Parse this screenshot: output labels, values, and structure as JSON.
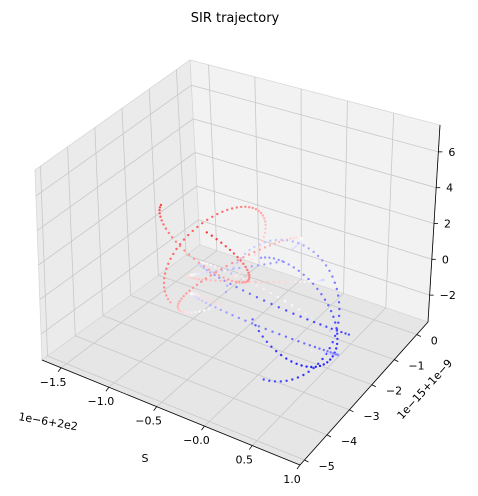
{
  "chart_data": {
    "type": "scatter",
    "title": "SIR trajectory",
    "xlabel": "S",
    "ylabel": "",
    "zlabel": "",
    "x_offset_label": "1e−6+2e2",
    "y_offset_label": "1e−15+1e−9",
    "x_ticks": [
      "−1.5",
      "−1.0",
      "−0.5",
      "−0.0",
      "0.5",
      "1.0"
    ],
    "y_ticks": [
      "−5",
      "−4",
      "−3",
      "−2",
      "−1",
      "0"
    ],
    "z_ticks": [
      "−2",
      "0",
      "2",
      "4",
      "6"
    ],
    "xlim": [
      -1.7,
      1.0
    ],
    "ylim": [
      -5.2,
      0.5
    ],
    "zlim": [
      -3.5,
      7.5
    ],
    "grid": true,
    "colormap": "bwr",
    "color_start": "#0000ff",
    "color_mid": "#ffffff",
    "color_end": "#ff0000",
    "curves": [
      {
        "center": [
          0.2,
          -1.8,
          0.5
        ],
        "radius": 1.4,
        "count": 55
      },
      {
        "center": [
          -0.2,
          -2.4,
          1.0
        ],
        "radius": 1.2,
        "count": 55
      },
      {
        "center": [
          -0.5,
          -2.8,
          0.0
        ],
        "radius": 1.1,
        "count": 55
      },
      {
        "center": [
          -0.9,
          -3.2,
          -0.5
        ],
        "radius": 0.9,
        "count": 50
      },
      {
        "center": [
          0.4,
          -1.2,
          1.5
        ],
        "radius": 1.0,
        "count": 50
      },
      {
        "center": [
          0.6,
          -0.8,
          2.5
        ],
        "radius": 0.8,
        "count": 45
      },
      {
        "center": [
          -1.2,
          -3.8,
          -1.0
        ],
        "radius": 0.8,
        "count": 45
      },
      {
        "center": [
          0.0,
          -2.0,
          -1.5
        ],
        "radius": 1.3,
        "count": 55
      }
    ]
  }
}
